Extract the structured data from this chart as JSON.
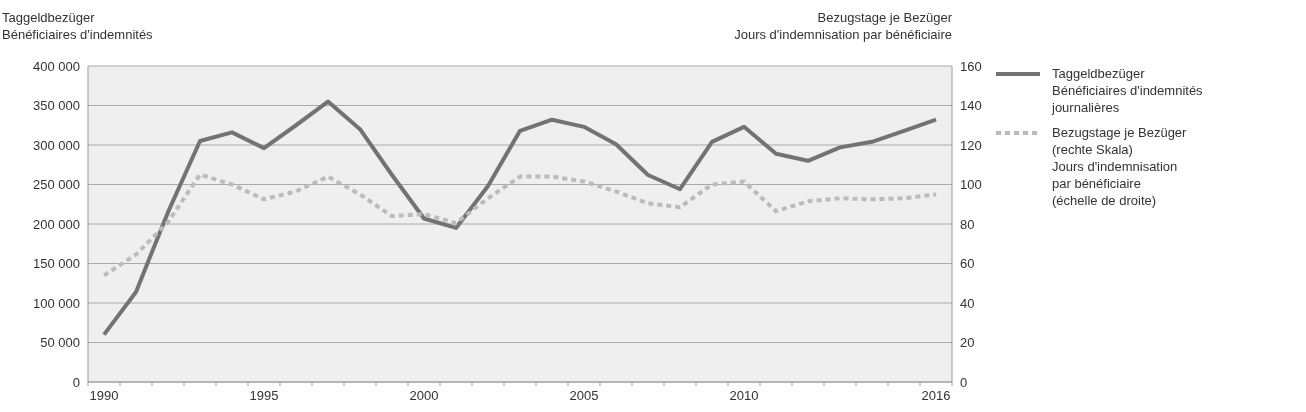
{
  "chart_data": {
    "type": "line",
    "ylabel": "Taggeldbezüger\nBénéficiaires d'indemnités",
    "y2label": "Bezugstage je Bezüger\nJours d'indemnisation par bénéficiaire",
    "categories": [
      "1990",
      null,
      null,
      null,
      null,
      "1995",
      null,
      null,
      null,
      null,
      "2000",
      null,
      null,
      null,
      null,
      "2005",
      null,
      null,
      null,
      null,
      "2010",
      null,
      null,
      null,
      null,
      null,
      "2016"
    ],
    "series": [
      {
        "name": "Taggeldbezüger\nBénéficiaires d'indemnités\njournalières",
        "color": "#737373",
        "line_style": "solid",
        "values": [
          60000,
          114000,
          215000,
          305000,
          316000,
          296000,
          325000,
          355000,
          320000,
          262000,
          207000,
          195000,
          248000,
          318000,
          332000,
          323000,
          301000,
          262000,
          244000,
          304000,
          323000,
          289000,
          280000,
          297000,
          304000,
          318000,
          332000
        ]
      },
      {
        "name": "Bezugstage je Bezüger\n(rechte Skala)\nJours d'indemnisation\npar bénéficiaire\n(échelle de droite)",
        "color": "#bbbbbb",
        "line_style": "dotted",
        "axis": "y2",
        "values": [
          54,
          64.5,
          81,
          105,
          100,
          92.5,
          96.5,
          104,
          95,
          84,
          85,
          80.5,
          93,
          104,
          104,
          101.5,
          96.5,
          90.5,
          88.5,
          100,
          101.5,
          86.5,
          91.5,
          93,
          92.5,
          93,
          95
        ]
      }
    ],
    "ylim": [
      0,
      400000
    ],
    "yticks": [
      0,
      {
        "value": 50000,
        "label": "50 000"
      },
      {
        "value": 100000,
        "label": "100 000"
      },
      {
        "value": 150000,
        "label": "150 000"
      },
      {
        "value": 200000,
        "label": "200 000"
      },
      {
        "value": 250000,
        "label": "250 000"
      },
      {
        "value": 300000,
        "label": "300 000"
      },
      {
        "value": 350000,
        "label": "350 000"
      },
      {
        "value": 400000,
        "label": "400 000"
      }
    ],
    "y2lim": [
      0,
      160
    ],
    "y2ticks": [
      0,
      20,
      40,
      60,
      80,
      100,
      120,
      140,
      160
    ],
    "grid": "y",
    "legend": "right",
    "marker": "none"
  }
}
